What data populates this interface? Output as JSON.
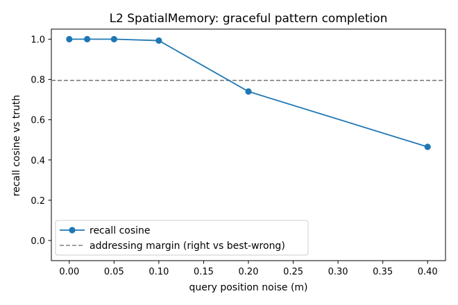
{
  "chart_data": {
    "type": "line",
    "title": "L2 SpatialMemory: graceful pattern completion",
    "xlabel": "query position noise (m)",
    "ylabel": "recall cosine vs truth",
    "xlim": [
      -0.02,
      0.42
    ],
    "ylim": [
      -0.1,
      1.05
    ],
    "xticks": [
      "0.00",
      "0.05",
      "0.10",
      "0.15",
      "0.20",
      "0.25",
      "0.30",
      "0.35",
      "0.40"
    ],
    "yticks": [
      "0.0",
      "0.2",
      "0.4",
      "0.6",
      "0.8",
      "1.0"
    ],
    "grid": false,
    "legend_position": "lower-left",
    "series": [
      {
        "name": "recall cosine",
        "style": "line-with-markers",
        "color": "#1f77b4",
        "x": [
          0.0,
          0.02,
          0.05,
          0.1,
          0.2,
          0.4
        ],
        "y": [
          1.0,
          1.0,
          1.0,
          0.993,
          0.74,
          0.465
        ]
      },
      {
        "name": "addressing margin (right vs best-wrong)",
        "style": "horizontal-dashed",
        "color": "#7f7f7f",
        "y": 0.795
      }
    ]
  }
}
